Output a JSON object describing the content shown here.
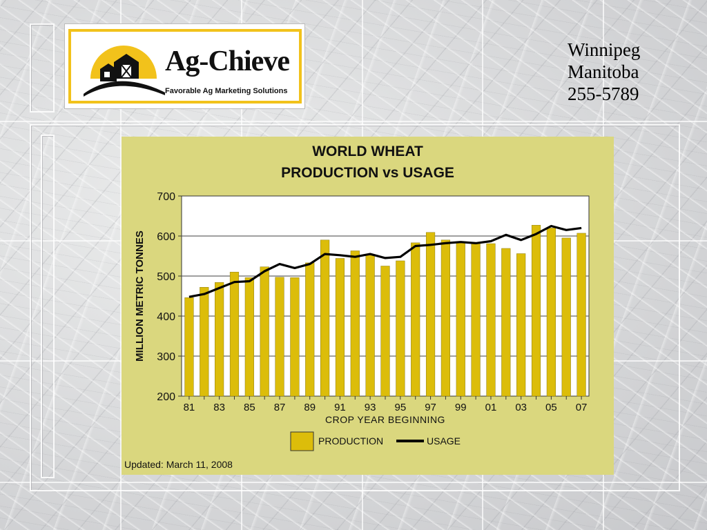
{
  "header": {
    "logo": {
      "name": "Ag-Chieve",
      "tagline": "Favorable Ag Marketing Solutions"
    },
    "contact": {
      "city": "Winnipeg",
      "province": "Manitoba",
      "phone": "255-5789"
    }
  },
  "colors": {
    "panel": "#dad77e",
    "bar": "#dcbd0a",
    "line": "#000000",
    "logo_yellow": "#f2c21b"
  },
  "chart_data": {
    "type": "bar",
    "title_line1": "WORLD WHEAT",
    "title_line2": "PRODUCTION vs USAGE",
    "xlabel": "CROP YEAR BEGINNING",
    "ylabel": "MILLION METRIC TONNES",
    "ylim": [
      200,
      700
    ],
    "yticks": [
      200,
      300,
      400,
      500,
      600,
      700
    ],
    "grid": "horizontal",
    "legend_position": "bottom",
    "categories": [
      "81",
      "82",
      "83",
      "84",
      "85",
      "86",
      "87",
      "88",
      "89",
      "90",
      "91",
      "92",
      "93",
      "94",
      "95",
      "96",
      "97",
      "98",
      "99",
      "00",
      "01",
      "02",
      "03",
      "04",
      "05",
      "06",
      "07"
    ],
    "x_tick_labels": [
      "81",
      "83",
      "85",
      "87",
      "89",
      "91",
      "93",
      "95",
      "97",
      "99",
      "01",
      "03",
      "05",
      "07"
    ],
    "series": [
      {
        "name": "PRODUCTION",
        "kind": "bar",
        "values": [
          446,
          472,
          484,
          510,
          496,
          523,
          497,
          496,
          533,
          590,
          544,
          563,
          552,
          525,
          538,
          583,
          609,
          590,
          586,
          583,
          581,
          569,
          556,
          627,
          620,
          595,
          607
        ]
      },
      {
        "name": "USAGE",
        "kind": "line",
        "values": [
          448,
          455,
          470,
          485,
          487,
          512,
          530,
          520,
          530,
          555,
          552,
          548,
          555,
          545,
          548,
          575,
          578,
          582,
          585,
          582,
          587,
          603,
          590,
          605,
          625,
          615,
          620
        ]
      }
    ]
  },
  "footer": {
    "updated": "Updated: March 11, 2008"
  }
}
